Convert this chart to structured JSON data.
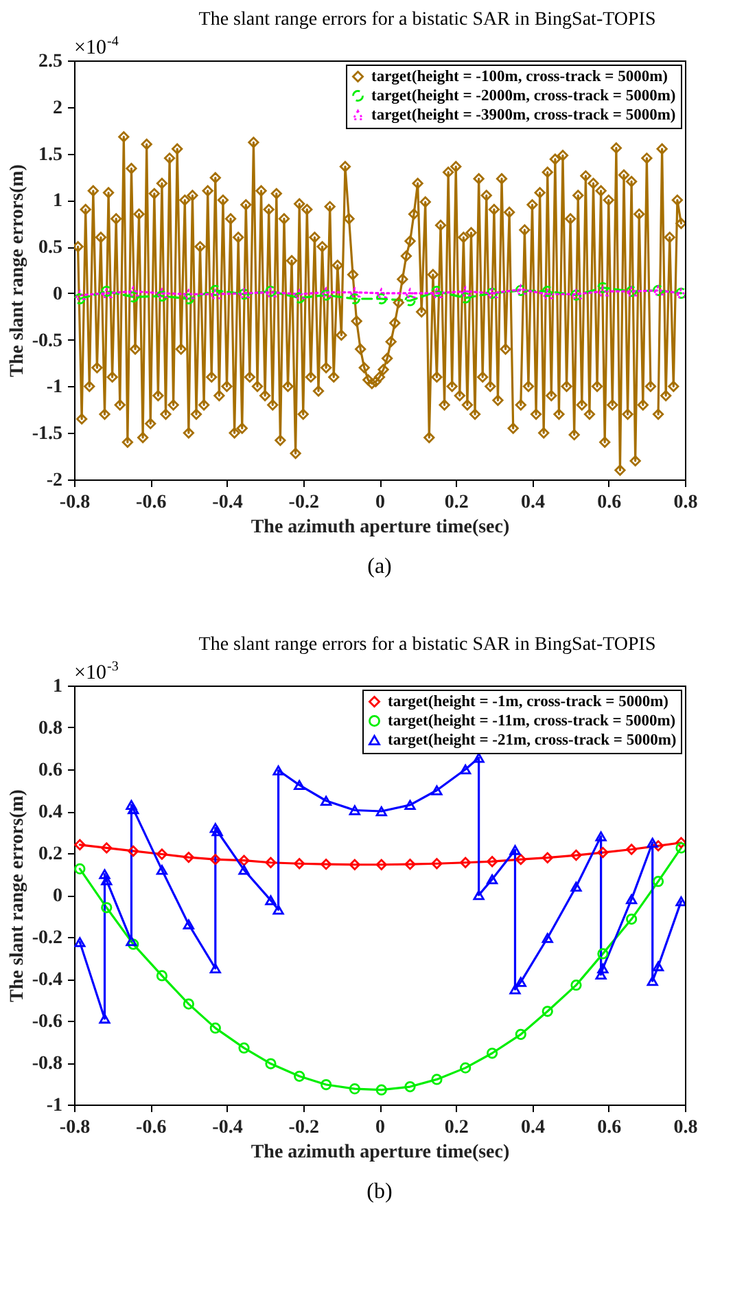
{
  "chart_data": [
    {
      "type": "line",
      "title": "The slant range errors for a bistatic SAR in BingSat-TOPIS",
      "xlabel": "The azimuth aperture time(sec)",
      "ylabel": "The slant range errors(m)",
      "annotations": [
        "×10$^{-4}$",
        "(a)"
      ],
      "xlim": [
        -0.8,
        0.8
      ],
      "xticks": [
        -0.8,
        -0.6,
        -0.4,
        -0.2,
        0,
        0.2,
        0.4,
        0.6,
        0.8
      ],
      "ylim": [
        -2,
        2.5
      ],
      "yticks": [
        -2,
        -1.5,
        -1,
        -0.5,
        0,
        0.5,
        1,
        1.5,
        2,
        2.5
      ],
      "grid": false,
      "legend": "top right",
      "series": [
        {
          "name": "target(height = -100m, cross-track = 5000m)",
          "color": "#a66f00",
          "marker": "diamond",
          "line_style": "solid",
          "x": [
            -0.79,
            -0.78,
            -0.77,
            -0.76,
            -0.75,
            -0.74,
            -0.73,
            -0.72,
            -0.71,
            -0.7,
            -0.69,
            -0.68,
            -0.67,
            -0.66,
            -0.65,
            -0.64,
            -0.63,
            -0.62,
            -0.61,
            -0.6,
            -0.59,
            -0.58,
            -0.57,
            -0.56,
            -0.55,
            -0.54,
            -0.53,
            -0.52,
            -0.51,
            -0.5,
            -0.49,
            -0.48,
            -0.47,
            -0.46,
            -0.45,
            -0.44,
            -0.43,
            -0.42,
            -0.41,
            -0.4,
            -0.39,
            -0.38,
            -0.37,
            -0.36,
            -0.35,
            -0.34,
            -0.33,
            -0.32,
            -0.31,
            -0.3,
            -0.29,
            -0.28,
            -0.27,
            -0.26,
            -0.25,
            -0.24,
            -0.23,
            -0.22,
            -0.21,
            -0.2,
            -0.19,
            -0.18,
            -0.17,
            -0.16,
            -0.15,
            -0.14,
            -0.13,
            -0.12,
            -0.11,
            -0.1,
            -0.09,
            -0.08,
            -0.07,
            -0.06,
            -0.05,
            -0.04,
            -0.03,
            -0.02,
            -0.01,
            0,
            0.01,
            0.02,
            0.03,
            0.04,
            0.05,
            0.06,
            0.07,
            0.08,
            0.09,
            0.1,
            0.11,
            0.12,
            0.13,
            0.14,
            0.15,
            0.16,
            0.17,
            0.18,
            0.19,
            0.2,
            0.21,
            0.22,
            0.23,
            0.24,
            0.25,
            0.26,
            0.27,
            0.28,
            0.29,
            0.3,
            0.31,
            0.32,
            0.33,
            0.34,
            0.35,
            0.36,
            0.37,
            0.38,
            0.39,
            0.4,
            0.41,
            0.42,
            0.43,
            0.44,
            0.45,
            0.46,
            0.47,
            0.48,
            0.49,
            0.5,
            0.51,
            0.52,
            0.53,
            0.54,
            0.55,
            0.56,
            0.57,
            0.58,
            0.59,
            0.6,
            0.61,
            0.62,
            0.63,
            0.64,
            0.65,
            0.66,
            0.67,
            0.68,
            0.69,
            0.7,
            0.71,
            0.72,
            0.73,
            0.74,
            0.75,
            0.76,
            0.77,
            0.78,
            0.79
          ],
          "values": [
            0.5,
            -1.35,
            0.9,
            -1.0,
            1.1,
            -0.8,
            0.6,
            -1.3,
            1.08,
            -0.9,
            0.8,
            -1.2,
            1.68,
            -1.6,
            1.34,
            -0.6,
            0.85,
            -1.55,
            1.6,
            -1.4,
            1.07,
            -1.1,
            1.18,
            -1.3,
            1.45,
            -1.2,
            1.55,
            -0.6,
            1.0,
            -1.5,
            1.05,
            -1.3,
            0.5,
            -1.2,
            1.1,
            -0.9,
            1.24,
            -1.1,
            1.0,
            -1.0,
            0.8,
            -1.5,
            0.6,
            -1.45,
            0.95,
            -0.9,
            1.62,
            -1.0,
            1.1,
            -1.1,
            0.9,
            -1.2,
            1.07,
            -1.58,
            0.8,
            -1.0,
            0.35,
            -1.72,
            0.96,
            -1.3,
            0.9,
            -0.9,
            0.6,
            -1.05,
            0.5,
            -0.8,
            0.93,
            -0.9,
            0.3,
            -0.45,
            1.36,
            0.8,
            0.2,
            -0.3,
            -0.6,
            -0.8,
            -0.93,
            -0.97,
            -0.95,
            -0.9,
            -0.82,
            -0.7,
            -0.52,
            -0.32,
            -0.1,
            0.15,
            0.4,
            0.56,
            0.85,
            1.18,
            -0.2,
            0.98,
            -1.55,
            0.2,
            -0.9,
            0.73,
            -1.2,
            1.3,
            -1.0,
            1.36,
            -1.1,
            0.6,
            -1.2,
            0.65,
            -1.3,
            1.23,
            -0.9,
            1.05,
            -1.0,
            0.9,
            -1.15,
            1.23,
            -0.6,
            0.87,
            -1.45,
            null,
            -1.2,
            0.68,
            -1.0,
            0.95,
            -1.3,
            1.08,
            -1.5,
            1.3,
            -1.1,
            1.44,
            -1.3,
            1.48,
            -1.0,
            0.8,
            -1.52,
            1.05,
            -1.2,
            1.26,
            -1.3,
            1.18,
            -1.0,
            1.1,
            -1.6,
            1.0,
            -1.2,
            1.56,
            -1.9,
            1.27,
            -1.3,
            1.2,
            -1.8,
            0.85,
            -1.2,
            1.45,
            -1.0,
            null,
            -1.3,
            1.55,
            -1.1,
            0.6,
            -1.0,
            1.0,
            0.75
          ]
        },
        {
          "name": "target(height = -2000m, cross-track = 5000m)",
          "color": "#00ee00",
          "marker": "circle",
          "line_style": "dashed",
          "x": [
            -0.785,
            -0.715,
            -0.645,
            -0.57,
            -0.5,
            -0.43,
            -0.355,
            -0.285,
            -0.21,
            -0.14,
            -0.065,
            0.005,
            0.08,
            0.15,
            0.225,
            0.295,
            0.37,
            0.44,
            0.515,
            0.585,
            0.66,
            0.73,
            0.79
          ],
          "values": [
            -0.06,
            0.02,
            -0.04,
            -0.03,
            -0.06,
            0.03,
            -0.01,
            0.02,
            -0.05,
            -0.02,
            -0.06,
            -0.06,
            -0.08,
            0.02,
            -0.05,
            0.0,
            0.03,
            0.02,
            -0.02,
            0.06,
            0.02,
            0.03,
            0.0
          ]
        },
        {
          "name": "target(height = -3900m, cross-track = 5000m)",
          "color": "#ff00ff",
          "marker": "triangle",
          "line_style": "dotted",
          "x": [
            -0.785,
            -0.715,
            -0.645,
            -0.57,
            -0.5,
            -0.43,
            -0.355,
            -0.285,
            -0.21,
            -0.14,
            -0.065,
            0.005,
            0.08,
            0.15,
            0.225,
            0.295,
            0.37,
            0.44,
            0.515,
            0.585,
            0.66,
            0.73,
            0.79
          ],
          "values": [
            -0.02,
            0.0,
            0.02,
            0.0,
            -0.01,
            -0.01,
            0.0,
            0.01,
            -0.01,
            0.01,
            0.01,
            0.0,
            0.0,
            0.0,
            0.02,
            0.0,
            0.04,
            -0.01,
            -0.01,
            0.02,
            0.02,
            0.03,
            0.0
          ]
        }
      ]
    },
    {
      "type": "line",
      "title": "The slant range errors for a bistatic SAR in BingSat-TOPIS",
      "xlabel": "The azimuth aperture time(sec)",
      "ylabel": "The slant range errors(m)",
      "annotations": [
        "×10$^{-3}$",
        "(b)"
      ],
      "xlim": [
        -0.8,
        0.8
      ],
      "xticks": [
        -0.8,
        -0.6,
        -0.4,
        -0.2,
        0,
        0.2,
        0.4,
        0.6,
        0.8
      ],
      "ylim": [
        -1,
        1
      ],
      "yticks": [
        -1,
        -0.8,
        -0.6,
        -0.4,
        -0.2,
        0,
        0.2,
        0.4,
        0.6,
        0.8,
        1
      ],
      "grid": false,
      "legend": "top right",
      "series": [
        {
          "name": "target(height = -1m, cross-track = 5000m)",
          "color": "#ff0000",
          "marker": "diamond",
          "line_style": "solid",
          "x": [
            -0.785,
            -0.715,
            -0.645,
            -0.57,
            -0.5,
            -0.43,
            -0.355,
            -0.285,
            -0.21,
            -0.14,
            -0.065,
            0.005,
            0.08,
            0.15,
            0.225,
            0.295,
            0.37,
            0.44,
            0.515,
            0.585,
            0.66,
            0.73,
            0.79
          ],
          "values": [
            0.24,
            0.225,
            0.21,
            0.195,
            0.18,
            0.17,
            0.165,
            0.155,
            0.15,
            0.147,
            0.145,
            0.145,
            0.147,
            0.15,
            0.155,
            0.16,
            0.17,
            0.178,
            0.19,
            0.203,
            0.218,
            0.235,
            0.25
          ]
        },
        {
          "name": "target(height = -11m, cross-track = 5000m)",
          "color": "#00ee00",
          "marker": "circle",
          "line_style": "solid",
          "x": [
            -0.785,
            -0.715,
            -0.645,
            -0.57,
            -0.5,
            -0.43,
            -0.355,
            -0.285,
            -0.21,
            -0.14,
            -0.065,
            0.005,
            0.08,
            0.15,
            0.225,
            0.295,
            0.37,
            0.44,
            0.515,
            0.585,
            0.66,
            0.73,
            0.79
          ],
          "values": [
            0.125,
            -0.06,
            -0.235,
            -0.385,
            -0.52,
            -0.635,
            -0.73,
            -0.805,
            -0.865,
            -0.905,
            -0.925,
            -0.93,
            -0.915,
            -0.88,
            -0.825,
            -0.755,
            -0.665,
            -0.555,
            -0.43,
            -0.28,
            -0.115,
            0.065,
            0.225
          ]
        },
        {
          "name": "target(height = -21m, cross-track = 5000m)",
          "color": "#0000ff",
          "marker": "triangle",
          "line_style": "solid",
          "x": [
            -0.785,
            -0.72,
            -0.72,
            -0.715,
            -0.65,
            -0.65,
            -0.645,
            -0.57,
            -0.5,
            -0.43,
            -0.43,
            -0.425,
            -0.355,
            -0.285,
            -0.265,
            -0.265,
            -0.21,
            -0.14,
            -0.065,
            0.005,
            0.08,
            0.15,
            0.225,
            0.26,
            0.26,
            0.295,
            0.355,
            0.355,
            0.37,
            0.44,
            0.515,
            0.58,
            0.58,
            0.585,
            0.66,
            0.715,
            0.715,
            0.73,
            0.79
          ],
          "values": [
            -0.225,
            -0.59,
            0.1,
            0.07,
            -0.22,
            0.43,
            0.41,
            0.12,
            -0.14,
            -0.35,
            0.32,
            0.305,
            0.12,
            -0.025,
            -0.07,
            0.595,
            0.525,
            0.45,
            0.405,
            0.4,
            0.43,
            0.5,
            0.6,
            0.655,
            0.0,
            0.075,
            0.215,
            -0.45,
            -0.415,
            -0.205,
            0.04,
            0.28,
            -0.38,
            -0.35,
            -0.02,
            0.25,
            -0.41,
            -0.34,
            -0.03
          ]
        }
      ]
    }
  ]
}
